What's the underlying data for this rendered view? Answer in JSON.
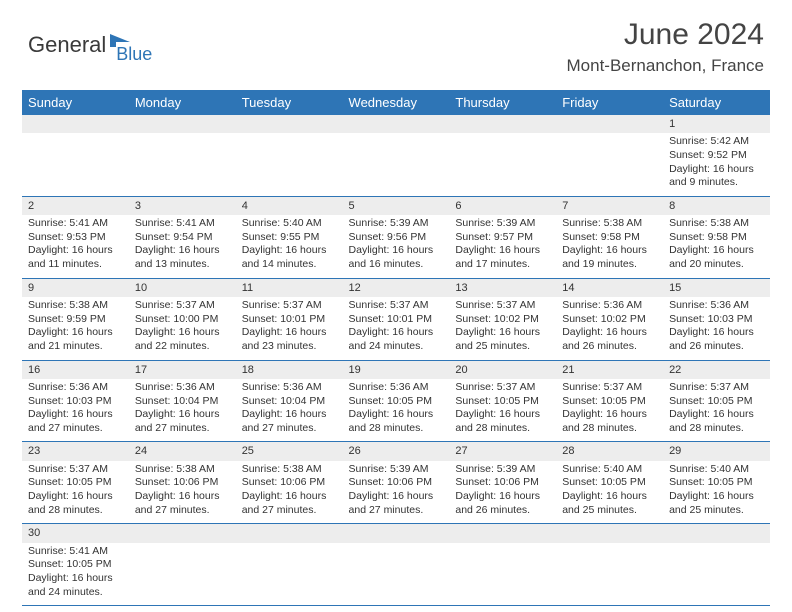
{
  "logo": {
    "text1": "General",
    "text2": "Blue"
  },
  "title": "June 2024",
  "subtitle": "Mont-Bernanchon, France",
  "colors": {
    "header_bg": "#2e75b6",
    "header_text": "#ffffff",
    "daynum_bg": "#ededed",
    "border": "#2e75b6",
    "body_text": "#333333",
    "logo_gray": "#3a3a3a",
    "logo_blue": "#2e75b6"
  },
  "day_headers": [
    "Sunday",
    "Monday",
    "Tuesday",
    "Wednesday",
    "Thursday",
    "Friday",
    "Saturday"
  ],
  "weeks": [
    {
      "nums": [
        "",
        "",
        "",
        "",
        "",
        "",
        "1"
      ],
      "cells": [
        "",
        "",
        "",
        "",
        "",
        "",
        "Sunrise: 5:42 AM\nSunset: 9:52 PM\nDaylight: 16 hours and 9 minutes."
      ]
    },
    {
      "nums": [
        "2",
        "3",
        "4",
        "5",
        "6",
        "7",
        "8"
      ],
      "cells": [
        "Sunrise: 5:41 AM\nSunset: 9:53 PM\nDaylight: 16 hours and 11 minutes.",
        "Sunrise: 5:41 AM\nSunset: 9:54 PM\nDaylight: 16 hours and 13 minutes.",
        "Sunrise: 5:40 AM\nSunset: 9:55 PM\nDaylight: 16 hours and 14 minutes.",
        "Sunrise: 5:39 AM\nSunset: 9:56 PM\nDaylight: 16 hours and 16 minutes.",
        "Sunrise: 5:39 AM\nSunset: 9:57 PM\nDaylight: 16 hours and 17 minutes.",
        "Sunrise: 5:38 AM\nSunset: 9:58 PM\nDaylight: 16 hours and 19 minutes.",
        "Sunrise: 5:38 AM\nSunset: 9:58 PM\nDaylight: 16 hours and 20 minutes."
      ]
    },
    {
      "nums": [
        "9",
        "10",
        "11",
        "12",
        "13",
        "14",
        "15"
      ],
      "cells": [
        "Sunrise: 5:38 AM\nSunset: 9:59 PM\nDaylight: 16 hours and 21 minutes.",
        "Sunrise: 5:37 AM\nSunset: 10:00 PM\nDaylight: 16 hours and 22 minutes.",
        "Sunrise: 5:37 AM\nSunset: 10:01 PM\nDaylight: 16 hours and 23 minutes.",
        "Sunrise: 5:37 AM\nSunset: 10:01 PM\nDaylight: 16 hours and 24 minutes.",
        "Sunrise: 5:37 AM\nSunset: 10:02 PM\nDaylight: 16 hours and 25 minutes.",
        "Sunrise: 5:36 AM\nSunset: 10:02 PM\nDaylight: 16 hours and 26 minutes.",
        "Sunrise: 5:36 AM\nSunset: 10:03 PM\nDaylight: 16 hours and 26 minutes."
      ]
    },
    {
      "nums": [
        "16",
        "17",
        "18",
        "19",
        "20",
        "21",
        "22"
      ],
      "cells": [
        "Sunrise: 5:36 AM\nSunset: 10:03 PM\nDaylight: 16 hours and 27 minutes.",
        "Sunrise: 5:36 AM\nSunset: 10:04 PM\nDaylight: 16 hours and 27 minutes.",
        "Sunrise: 5:36 AM\nSunset: 10:04 PM\nDaylight: 16 hours and 27 minutes.",
        "Sunrise: 5:36 AM\nSunset: 10:05 PM\nDaylight: 16 hours and 28 minutes.",
        "Sunrise: 5:37 AM\nSunset: 10:05 PM\nDaylight: 16 hours and 28 minutes.",
        "Sunrise: 5:37 AM\nSunset: 10:05 PM\nDaylight: 16 hours and 28 minutes.",
        "Sunrise: 5:37 AM\nSunset: 10:05 PM\nDaylight: 16 hours and 28 minutes."
      ]
    },
    {
      "nums": [
        "23",
        "24",
        "25",
        "26",
        "27",
        "28",
        "29"
      ],
      "cells": [
        "Sunrise: 5:37 AM\nSunset: 10:05 PM\nDaylight: 16 hours and 28 minutes.",
        "Sunrise: 5:38 AM\nSunset: 10:06 PM\nDaylight: 16 hours and 27 minutes.",
        "Sunrise: 5:38 AM\nSunset: 10:06 PM\nDaylight: 16 hours and 27 minutes.",
        "Sunrise: 5:39 AM\nSunset: 10:06 PM\nDaylight: 16 hours and 27 minutes.",
        "Sunrise: 5:39 AM\nSunset: 10:06 PM\nDaylight: 16 hours and 26 minutes.",
        "Sunrise: 5:40 AM\nSunset: 10:05 PM\nDaylight: 16 hours and 25 minutes.",
        "Sunrise: 5:40 AM\nSunset: 10:05 PM\nDaylight: 16 hours and 25 minutes."
      ]
    },
    {
      "nums": [
        "30",
        "",
        "",
        "",
        "",
        "",
        ""
      ],
      "cells": [
        "Sunrise: 5:41 AM\nSunset: 10:05 PM\nDaylight: 16 hours and 24 minutes.",
        "",
        "",
        "",
        "",
        "",
        ""
      ]
    }
  ]
}
